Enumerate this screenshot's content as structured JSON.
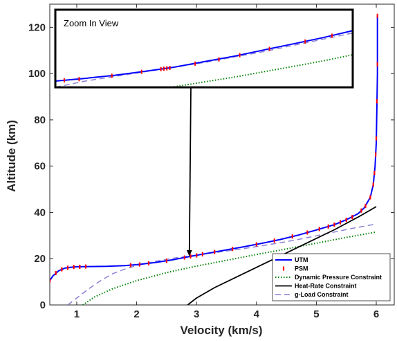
{
  "chart_data": {
    "type": "line",
    "title": "",
    "xlabel": "Velocity (km/s)",
    "ylabel": "Altitude (km)",
    "xlim": [
      0.55,
      6.3
    ],
    "ylim": [
      0,
      130
    ],
    "xticks": [
      1,
      2,
      3,
      4,
      5,
      6
    ],
    "yticks": [
      0,
      20,
      40,
      60,
      80,
      100,
      120
    ],
    "grid": false,
    "legend_position": "bottom-right",
    "series": [
      {
        "name": "UTM",
        "color": "#0000ff",
        "style": "solid",
        "points": [
          [
            0.55,
            10.5
          ],
          [
            0.6,
            12.5
          ],
          [
            0.7,
            14.8
          ],
          [
            0.8,
            15.9
          ],
          [
            0.9,
            16.3
          ],
          [
            1.0,
            16.5
          ],
          [
            1.2,
            16.6
          ],
          [
            1.5,
            16.7
          ],
          [
            1.8,
            17.0
          ],
          [
            2.0,
            17.4
          ],
          [
            2.3,
            18.3
          ],
          [
            2.6,
            19.5
          ],
          [
            2.9,
            21.0
          ],
          [
            3.2,
            22.4
          ],
          [
            3.5,
            23.8
          ],
          [
            3.8,
            25.2
          ],
          [
            4.1,
            26.7
          ],
          [
            4.4,
            28.3
          ],
          [
            4.7,
            30.2
          ],
          [
            5.0,
            32.4
          ],
          [
            5.3,
            34.7
          ],
          [
            5.5,
            36.8
          ],
          [
            5.7,
            39.5
          ],
          [
            5.8,
            42.0
          ],
          [
            5.9,
            46.5
          ],
          [
            5.95,
            52
          ],
          [
            5.98,
            60
          ],
          [
            6.0,
            70
          ],
          [
            6.01,
            85
          ],
          [
            6.02,
            100
          ],
          [
            6.02,
            125
          ]
        ]
      },
      {
        "name": "PSM",
        "color": "#ff0000",
        "style": "marker",
        "points": [
          [
            0.55,
            10.6
          ],
          [
            0.65,
            13.8
          ],
          [
            0.75,
            15.4
          ],
          [
            0.85,
            16.1
          ],
          [
            0.95,
            16.4
          ],
          [
            1.05,
            16.5
          ],
          [
            1.15,
            16.6
          ],
          [
            1.9,
            17.2
          ],
          [
            2.05,
            17.5
          ],
          [
            2.2,
            18.0
          ],
          [
            2.5,
            19.1
          ],
          [
            2.8,
            20.5
          ],
          [
            2.9,
            21.0
          ],
          [
            3.0,
            21.4
          ],
          [
            3.1,
            21.9
          ],
          [
            3.3,
            22.9
          ],
          [
            3.6,
            24.2
          ],
          [
            4.0,
            26.2
          ],
          [
            4.3,
            27.8
          ],
          [
            4.6,
            29.6
          ],
          [
            4.85,
            31.3
          ],
          [
            5.05,
            32.8
          ],
          [
            5.2,
            33.9
          ],
          [
            5.3,
            34.7
          ],
          [
            5.4,
            35.7
          ],
          [
            5.5,
            36.8
          ],
          [
            5.6,
            38.0
          ],
          [
            5.75,
            40.8
          ],
          [
            5.82,
            42.8
          ],
          [
            5.9,
            46.5
          ],
          [
            5.95,
            52
          ],
          [
            5.97,
            57
          ],
          [
            5.99,
            65
          ],
          [
            6.0,
            72
          ],
          [
            6.01,
            88
          ],
          [
            6.02,
            104
          ],
          [
            6.02,
            125
          ]
        ]
      },
      {
        "name": "Dynamic Pressure Constraint",
        "color": "#008000",
        "style": "dotted",
        "points": [
          [
            1.1,
            0
          ],
          [
            1.3,
            3.5
          ],
          [
            1.6,
            7.0
          ],
          [
            2.0,
            10.5
          ],
          [
            2.5,
            14.0
          ],
          [
            3.0,
            16.8
          ],
          [
            3.5,
            19.3
          ],
          [
            4.0,
            21.8
          ],
          [
            4.5,
            24.2
          ],
          [
            5.0,
            26.7
          ],
          [
            5.5,
            29.2
          ],
          [
            6.0,
            31.5
          ]
        ]
      },
      {
        "name": "Heat-Rate Constraint",
        "color": "#000000",
        "style": "solid",
        "points": [
          [
            2.85,
            0
          ],
          [
            3.0,
            3.0
          ],
          [
            3.3,
            7.5
          ],
          [
            3.7,
            12.5
          ],
          [
            4.1,
            17.5
          ],
          [
            4.5,
            22.5
          ],
          [
            4.9,
            27.5
          ],
          [
            5.3,
            32.5
          ],
          [
            5.7,
            38.0
          ],
          [
            6.0,
            42.5
          ]
        ]
      },
      {
        "name": "g-Load Constraint",
        "color": "#8b80d4",
        "style": "dashed",
        "points": [
          [
            0.85,
            0
          ],
          [
            1.0,
            3.0
          ],
          [
            1.2,
            7.0
          ],
          [
            1.4,
            10.5
          ],
          [
            1.6,
            13.5
          ],
          [
            1.8,
            15.5
          ],
          [
            2.0,
            17.0
          ],
          [
            2.3,
            18.8
          ],
          [
            2.6,
            20.2
          ],
          [
            2.9,
            21.2
          ],
          [
            3.2,
            22.3
          ],
          [
            3.5,
            23.3
          ],
          [
            3.8,
            24.4
          ],
          [
            4.1,
            25.6
          ],
          [
            4.4,
            26.9
          ],
          [
            4.7,
            28.3
          ],
          [
            5.0,
            29.9
          ],
          [
            5.3,
            31.5
          ],
          [
            5.6,
            33.1
          ],
          [
            6.0,
            35.0
          ]
        ]
      }
    ],
    "inset": {
      "title": "Zoom In View",
      "lines": [
        {
          "name": "UTM",
          "points": [
            [
              0,
              0.08
            ],
            [
              0.1,
              0.115
            ],
            [
              0.2,
              0.155
            ],
            [
              0.3,
              0.205
            ],
            [
              0.4,
              0.26
            ],
            [
              0.5,
              0.33
            ],
            [
              0.6,
              0.4
            ],
            [
              0.7,
              0.48
            ],
            [
              0.8,
              0.56
            ],
            [
              0.9,
              0.64
            ],
            [
              1.0,
              0.73
            ]
          ]
        },
        {
          "name": "PSM",
          "points": [
            [
              0.03,
              0.09
            ],
            [
              0.08,
              0.105
            ],
            [
              0.19,
              0.15
            ],
            [
              0.29,
              0.2
            ],
            [
              0.355,
              0.235
            ],
            [
              0.365,
              0.24
            ],
            [
              0.375,
              0.245
            ],
            [
              0.385,
              0.25
            ],
            [
              0.47,
              0.305
            ],
            [
              0.55,
              0.36
            ],
            [
              0.62,
              0.415
            ],
            [
              0.72,
              0.495
            ],
            [
              0.84,
              0.59
            ],
            [
              0.93,
              0.665
            ]
          ]
        },
        {
          "name": "g-Load Constraint",
          "points": [
            [
              0.0,
              0.0
            ],
            [
              0.1,
              0.08
            ],
            [
              0.2,
              0.14
            ],
            [
              0.3,
              0.2
            ],
            [
              0.4,
              0.26
            ],
            [
              0.5,
              0.32
            ],
            [
              0.6,
              0.39
            ],
            [
              0.7,
              0.46
            ],
            [
              0.8,
              0.54
            ],
            [
              0.9,
              0.62
            ],
            [
              1.0,
              0.7
            ]
          ]
        },
        {
          "name": "Dynamic Pressure Constraint",
          "points": [
            [
              0.39,
              0.0
            ],
            [
              0.5,
              0.07
            ],
            [
              0.6,
              0.13
            ],
            [
              0.7,
              0.2
            ],
            [
              0.8,
              0.27
            ],
            [
              0.9,
              0.34
            ],
            [
              1.0,
              0.42
            ]
          ]
        }
      ],
      "arrow_target": [
        2.88,
        21.0
      ]
    }
  }
}
